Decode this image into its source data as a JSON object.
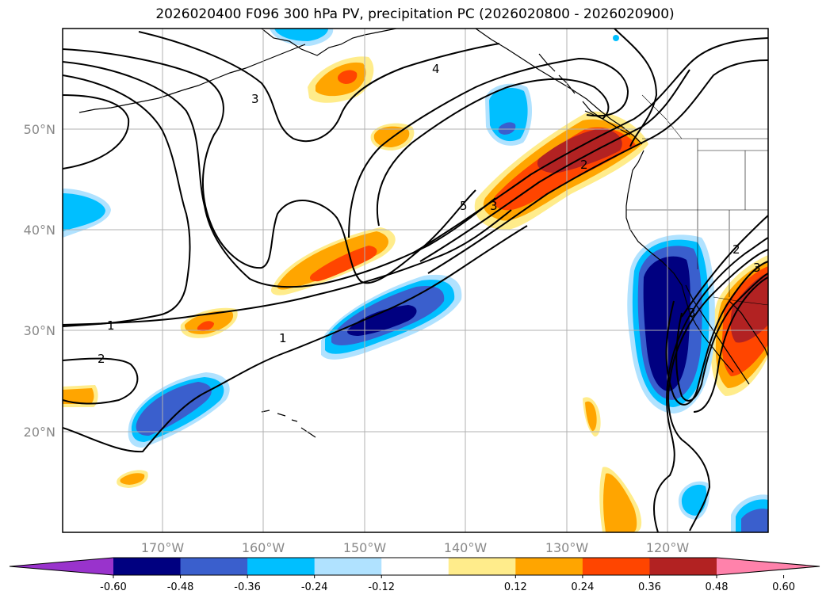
{
  "title": "2026020400 F096 300 hPa PV, precipitation PC (2026020800 - 2026020900)",
  "map": {
    "lat_labels": [
      "50°N",
      "40°N",
      "30°N",
      "20°N"
    ],
    "lon_labels": [
      "170°W",
      "160°W",
      "150°W",
      "140°W",
      "130°W",
      "120°W"
    ],
    "pv_contour_labels": [
      "1",
      "1",
      "2",
      "2",
      "2",
      "3",
      "3",
      "3",
      "3",
      "4",
      "5"
    ]
  },
  "colorbar": {
    "ticks": [
      "-0.60",
      "-0.48",
      "-0.36",
      "-0.24",
      "-0.12",
      "0.12",
      "0.24",
      "0.36",
      "0.48",
      "0.60"
    ],
    "colors": [
      "#9933cc",
      "#000080",
      "#3a5fcd",
      "#00bfff",
      "#b0e2ff",
      "#ffffff",
      "#ffec8b",
      "#ffa500",
      "#ff4500",
      "#b22222",
      "#ff82ab"
    ]
  },
  "colors": {
    "coast": "#000000",
    "grid": "#b0b0b0",
    "contour": "#000000"
  }
}
